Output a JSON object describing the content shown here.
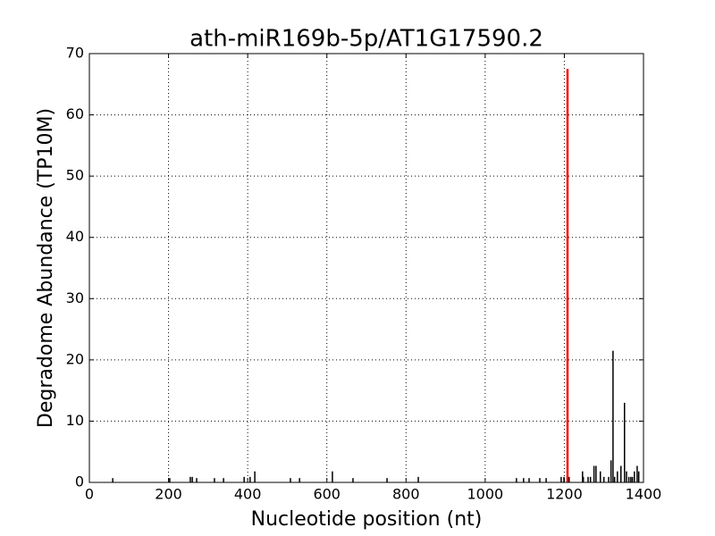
{
  "chart_data": {
    "type": "stem",
    "title": "ath-miR169b-5p/AT1G17590.2",
    "x_label": "Nucleotide position (nt)",
    "y_label": "Degradome Abundance (TP10M)",
    "xlim": [
      0,
      1400
    ],
    "xticks": [
      0,
      200,
      400,
      600,
      800,
      1000,
      1200,
      1400
    ],
    "ylim": [
      0,
      70
    ],
    "yticks": [
      0,
      10,
      20,
      30,
      40,
      50,
      60,
      70
    ],
    "grid": true,
    "series": [
      {
        "color": "#000000",
        "x": [
          59,
          203,
          255,
          260,
          271,
          316,
          339,
          391,
          406,
          418,
          508,
          531,
          614,
          666,
          752,
          831,
          1079,
          1097,
          1111,
          1138,
          1154,
          1192,
          1199,
          1212,
          1246,
          1248,
          1260,
          1266,
          1275,
          1280,
          1291,
          1300,
          1312,
          1318,
          1323,
          1327,
          1334,
          1343,
          1352,
          1357,
          1363,
          1368,
          1372,
          1377,
          1384,
          1388
        ],
        "values": [
          0.7,
          0.7,
          0.9,
          0.9,
          0.7,
          0.7,
          0.7,
          0.9,
          0.9,
          1.8,
          0.7,
          0.7,
          1.8,
          0.7,
          0.7,
          0.9,
          0.7,
          0.7,
          0.7,
          0.7,
          0.7,
          0.9,
          0.9,
          0.9,
          1.8,
          0.9,
          0.9,
          0.9,
          2.7,
          2.7,
          1.8,
          0.9,
          0.9,
          3.6,
          21.5,
          0.9,
          1.8,
          2.7,
          13,
          1.8,
          0.9,
          0.9,
          0.9,
          1.8,
          2.7,
          1.8
        ]
      },
      {
        "color": "#ff0000",
        "x": [
          1208
        ],
        "values": [
          67.5
        ]
      }
    ]
  }
}
